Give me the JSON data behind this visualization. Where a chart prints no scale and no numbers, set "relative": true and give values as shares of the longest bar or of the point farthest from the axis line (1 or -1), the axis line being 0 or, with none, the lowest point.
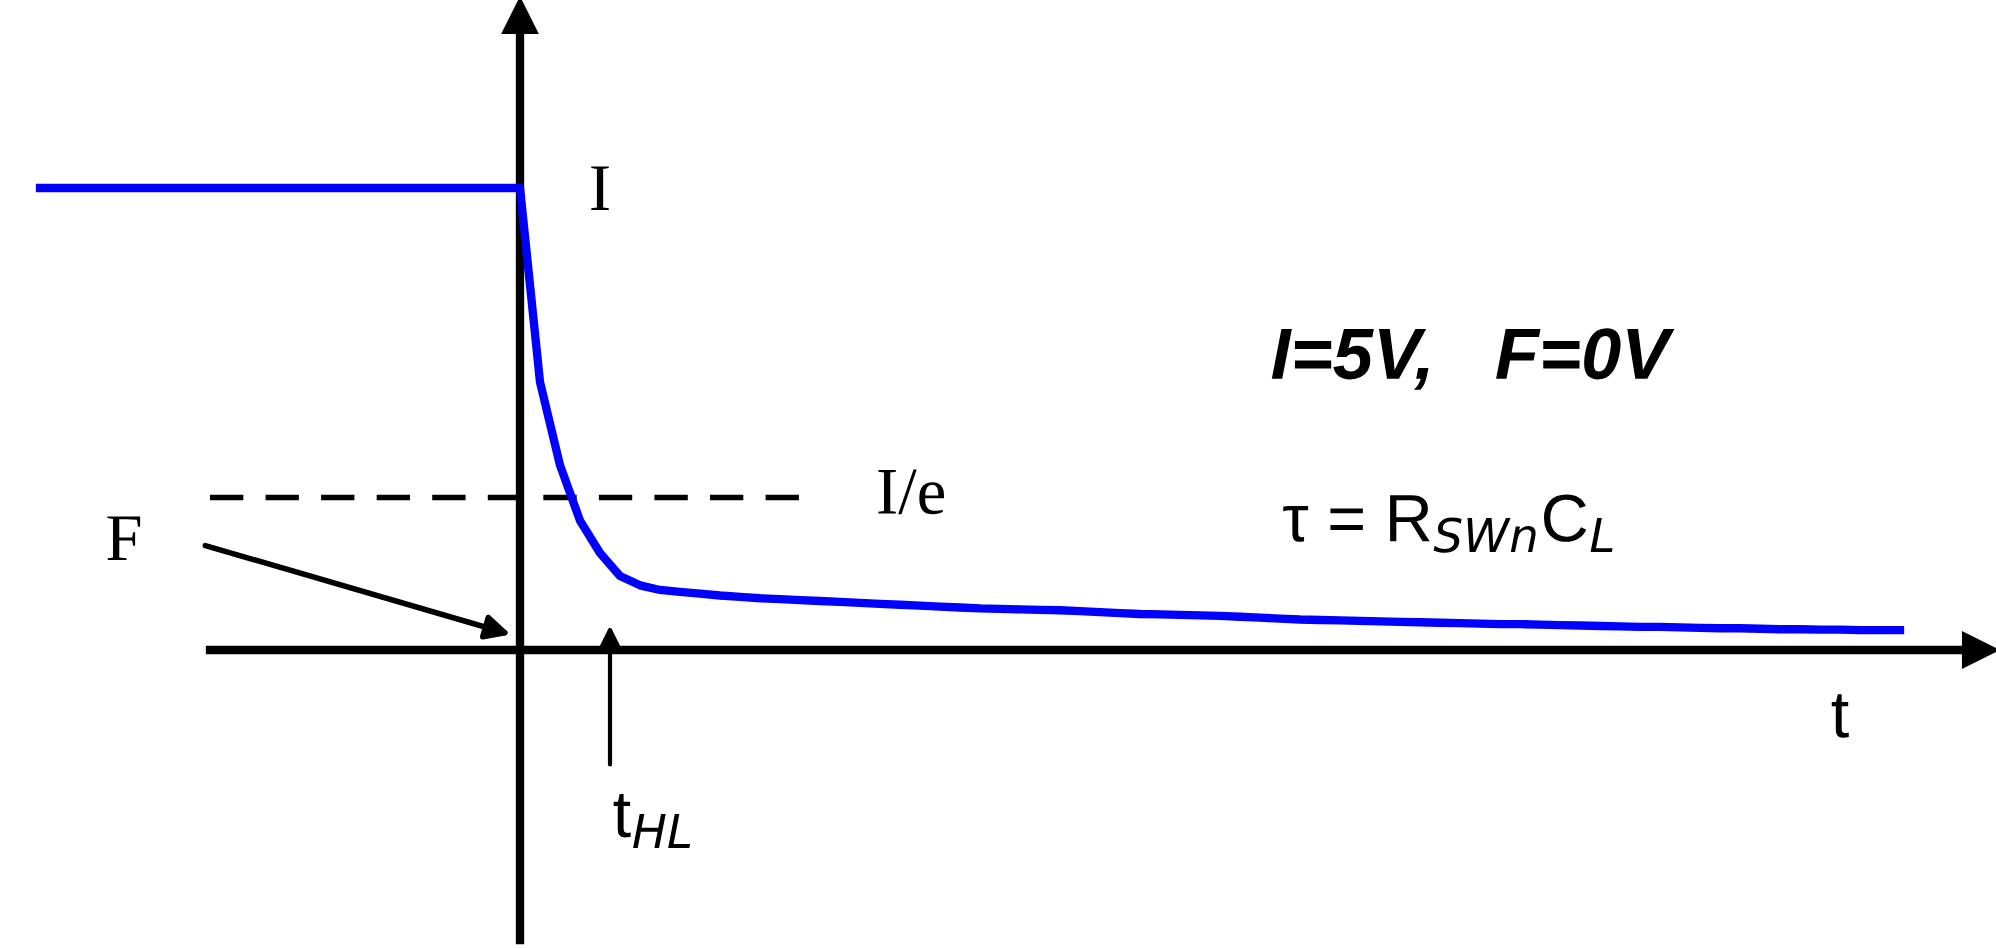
{
  "chart_data": {
    "type": "line",
    "relative": true,
    "xlabel": "t",
    "categories": [
      null,
      null,
      null,
      null,
      null,
      null,
      null,
      null,
      null,
      null,
      null,
      null,
      null,
      null,
      null,
      null,
      null,
      null,
      null,
      null,
      null,
      null,
      null,
      null,
      null,
      null,
      null,
      null,
      null,
      null,
      null,
      null,
      null,
      null,
      null,
      null,
      null,
      null,
      null,
      null,
      null,
      null,
      null,
      null,
      null,
      null,
      null,
      null,
      null,
      null,
      null,
      null,
      null,
      null,
      null,
      null,
      null,
      null,
      null,
      null,
      null,
      null,
      null,
      null,
      null,
      null,
      null,
      null,
      null,
      null,
      null,
      null,
      null,
      null,
      null,
      null,
      null,
      null,
      null,
      null,
      null,
      null,
      null,
      null,
      null,
      null,
      null,
      null,
      null,
      null,
      null,
      null,
      null,
      null
    ],
    "series": [
      {
        "color": "#0000ff",
        "values": [
          1,
          1,
          1,
          1,
          1,
          1,
          1,
          1,
          1,
          1,
          1,
          1,
          1,
          1,
          1,
          1,
          1,
          1,
          1,
          1,
          1,
          1,
          1,
          1,
          1,
          0.58,
          0.4,
          0.28,
          0.21,
          0.16,
          0.14,
          0.13,
          0.126,
          0.122,
          0.118,
          0.115,
          0.112,
          0.11,
          0.108,
          0.106,
          0.104,
          0.102,
          0.1,
          0.098,
          0.096,
          0.094,
          0.092,
          0.09,
          0.089,
          0.088,
          0.087,
          0.086,
          0.084,
          0.082,
          0.08,
          0.078,
          0.077,
          0.076,
          0.075,
          0.074,
          0.072,
          0.07,
          0.068,
          0.066,
          0.065,
          0.064,
          0.063,
          0.062,
          0.061,
          0.06,
          0.059,
          0.058,
          0.057,
          0.056,
          0.056,
          0.055,
          0.054,
          0.053,
          0.052,
          0.051,
          0.05,
          0.05,
          0.049,
          0.048,
          0.047,
          0.047,
          0.046,
          0.045,
          0.045,
          0.044,
          0.044,
          0.043,
          0.043,
          0.043
        ]
      }
    ],
    "ref_lines": [
      {
        "axis": "y",
        "value": 0.33,
        "label": "I/e",
        "color": "#000000",
        "line_style": "dashed"
      }
    ],
    "annotations": [
      "I",
      "F",
      "t$_{HL}$",
      "I=5V,   F=0V",
      "τ = R$_{SWn}$C$_{L}$"
    ]
  }
}
